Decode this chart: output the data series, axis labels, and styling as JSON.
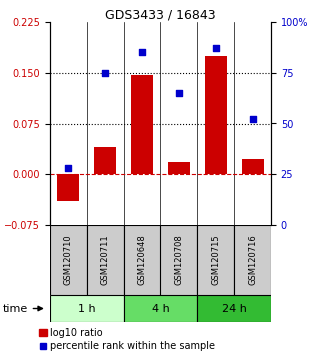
{
  "title": "GDS3433 / 16843",
  "categories": [
    "GSM120710",
    "GSM120711",
    "GSM120648",
    "GSM120708",
    "GSM120715",
    "GSM120716"
  ],
  "log10_ratio": [
    -0.04,
    0.04,
    0.147,
    0.018,
    0.175,
    0.022
  ],
  "percentile_rank": [
    28,
    75,
    85,
    65,
    87,
    52
  ],
  "ylim_left": [
    -0.075,
    0.225
  ],
  "ylim_right": [
    0,
    100
  ],
  "yticks_left": [
    -0.075,
    0,
    0.075,
    0.15,
    0.225
  ],
  "yticks_right": [
    0,
    25,
    50,
    75,
    100
  ],
  "hlines": [
    0.075,
    0.15
  ],
  "bar_color": "#cc0000",
  "scatter_color": "#0000cc",
  "zero_line_color": "#cc0000",
  "groups": [
    {
      "label": "1 h",
      "indices": [
        0,
        1
      ],
      "color": "#ccffcc"
    },
    {
      "label": "4 h",
      "indices": [
        2,
        3
      ],
      "color": "#66dd66"
    },
    {
      "label": "24 h",
      "indices": [
        4,
        5
      ],
      "color": "#33bb33"
    }
  ],
  "time_label": "time",
  "legend_bar_label": "log10 ratio",
  "legend_scatter_label": "percentile rank within the sample",
  "background_color": "#ffffff",
  "plot_bg_color": "#ffffff",
  "label_box_color": "#cccccc",
  "title_fontsize": 9,
  "tick_fontsize": 7,
  "label_fontsize": 6,
  "group_fontsize": 8,
  "legend_fontsize": 7
}
